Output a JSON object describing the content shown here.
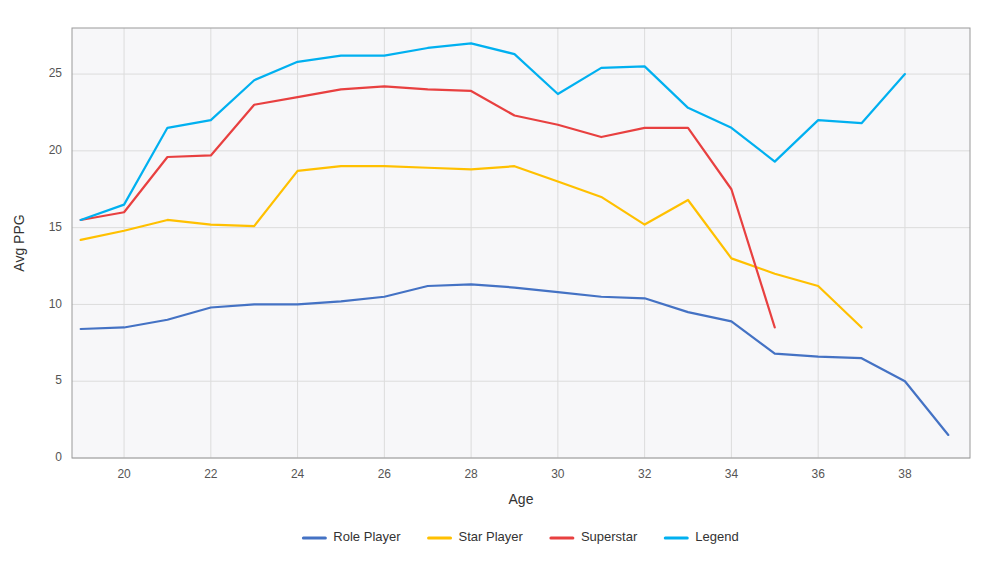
{
  "chart_data": {
    "type": "line",
    "x": [
      19,
      20,
      21,
      22,
      23,
      24,
      25,
      26,
      27,
      28,
      29,
      30,
      31,
      32,
      33,
      34,
      35,
      36,
      37,
      38,
      39
    ],
    "series": [
      {
        "name": "Role Player",
        "color": "#4472C4",
        "values": [
          8.4,
          8.5,
          9.0,
          9.8,
          10.0,
          10.0,
          10.2,
          10.5,
          11.2,
          11.3,
          11.1,
          10.8,
          10.5,
          10.4,
          9.5,
          8.9,
          6.8,
          6.6,
          6.5,
          5.0,
          1.5
        ]
      },
      {
        "name": "Star Player",
        "color": "#FFC000",
        "values": [
          14.2,
          14.8,
          15.5,
          15.2,
          15.1,
          18.7,
          19.0,
          19.0,
          18.9,
          18.8,
          19.0,
          18.0,
          17.0,
          15.2,
          16.8,
          13.0,
          12.0,
          11.2,
          8.5,
          null,
          null
        ]
      },
      {
        "name": "Superstar",
        "color": "#E84040",
        "values": [
          15.5,
          16.0,
          19.6,
          19.7,
          23.0,
          23.5,
          24.0,
          24.2,
          24.0,
          23.9,
          22.3,
          21.7,
          20.9,
          21.5,
          21.5,
          17.5,
          8.5,
          null,
          null,
          null,
          null
        ]
      },
      {
        "name": "Legend",
        "color": "#00B0F0",
        "values": [
          15.5,
          16.5,
          21.5,
          22.0,
          24.6,
          25.8,
          26.2,
          26.2,
          26.7,
          27.0,
          26.3,
          23.7,
          25.4,
          25.5,
          22.8,
          21.5,
          19.3,
          22.0,
          21.8,
          25.0,
          null
        ]
      }
    ],
    "xlabel": "Age",
    "ylabel": "Avg PPG",
    "xlim": [
      18.8,
      39.5
    ],
    "ylim": [
      0,
      28
    ],
    "xticks": [
      20,
      22,
      24,
      26,
      28,
      30,
      32,
      34,
      36,
      38
    ],
    "yticks": [
      0,
      5,
      10,
      15,
      20,
      25
    ],
    "grid": true,
    "legend": "bottom"
  }
}
